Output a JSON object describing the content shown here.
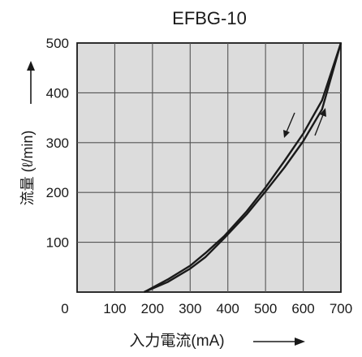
{
  "chart_data": {
    "type": "line",
    "title": "EFBG-10",
    "xlabel": "入力電流(mA)",
    "ylabel": "流量 (ℓ/min)",
    "x_ticks": [
      0,
      100,
      200,
      300,
      400,
      500,
      600,
      700
    ],
    "y_ticks": [
      100,
      200,
      300,
      400,
      500
    ],
    "xlim": [
      0,
      700
    ],
    "ylim": [
      0,
      500
    ],
    "grid": true,
    "series": [
      {
        "direction": "up",
        "points": [
          [
            178,
            0
          ],
          [
            240,
            20
          ],
          [
            300,
            47
          ],
          [
            340,
            70
          ],
          [
            390,
            108
          ],
          [
            450,
            156
          ],
          [
            500,
            202
          ],
          [
            550,
            250
          ],
          [
            600,
            303
          ],
          [
            650,
            367
          ],
          [
            700,
            500
          ]
        ]
      },
      {
        "direction": "down",
        "points": [
          [
            178,
            0
          ],
          [
            240,
            25
          ],
          [
            300,
            53
          ],
          [
            340,
            78
          ],
          [
            390,
            112
          ],
          [
            450,
            162
          ],
          [
            500,
            210
          ],
          [
            550,
            263
          ],
          [
            600,
            318
          ],
          [
            650,
            385
          ],
          [
            700,
            500
          ]
        ]
      }
    ],
    "colors": {
      "plot_background": "#dcdcdc",
      "grid": "#555555",
      "line": "#1a1a1a"
    }
  }
}
